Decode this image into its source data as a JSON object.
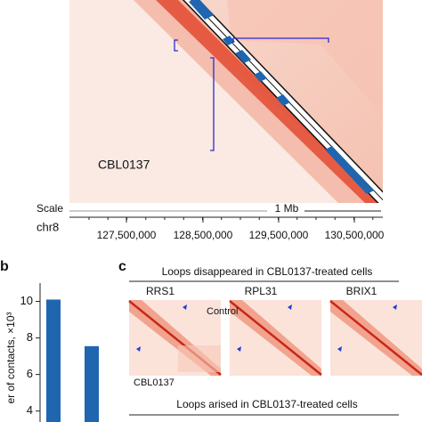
{
  "panel_a": {
    "sample_label": "CBL0137",
    "scale_label": "Scale",
    "scale_bar": "1 Mb",
    "chrom": "chr8",
    "positions": [
      "127,500,000",
      "128,500,000",
      "129,500,000",
      "130,500,000"
    ]
  },
  "panel_b": {
    "letter": "b",
    "ylabel": "er of contacts, ×10³",
    "yticks": [
      4,
      6,
      8,
      10
    ],
    "ylim": [
      3.4,
      11
    ],
    "values": [
      10.1,
      7.55
    ],
    "color": "#1f65b0"
  },
  "panel_c": {
    "letter": "c",
    "title_top": "Loops disappeared in CBL0137-treated cells",
    "genes": [
      "RRS1",
      "RPL31",
      "BRIX1"
    ],
    "control_label": "Control",
    "treated_label": "CBL0137",
    "title_bottom": "Loops arised in CBL0137-treated cells"
  }
}
